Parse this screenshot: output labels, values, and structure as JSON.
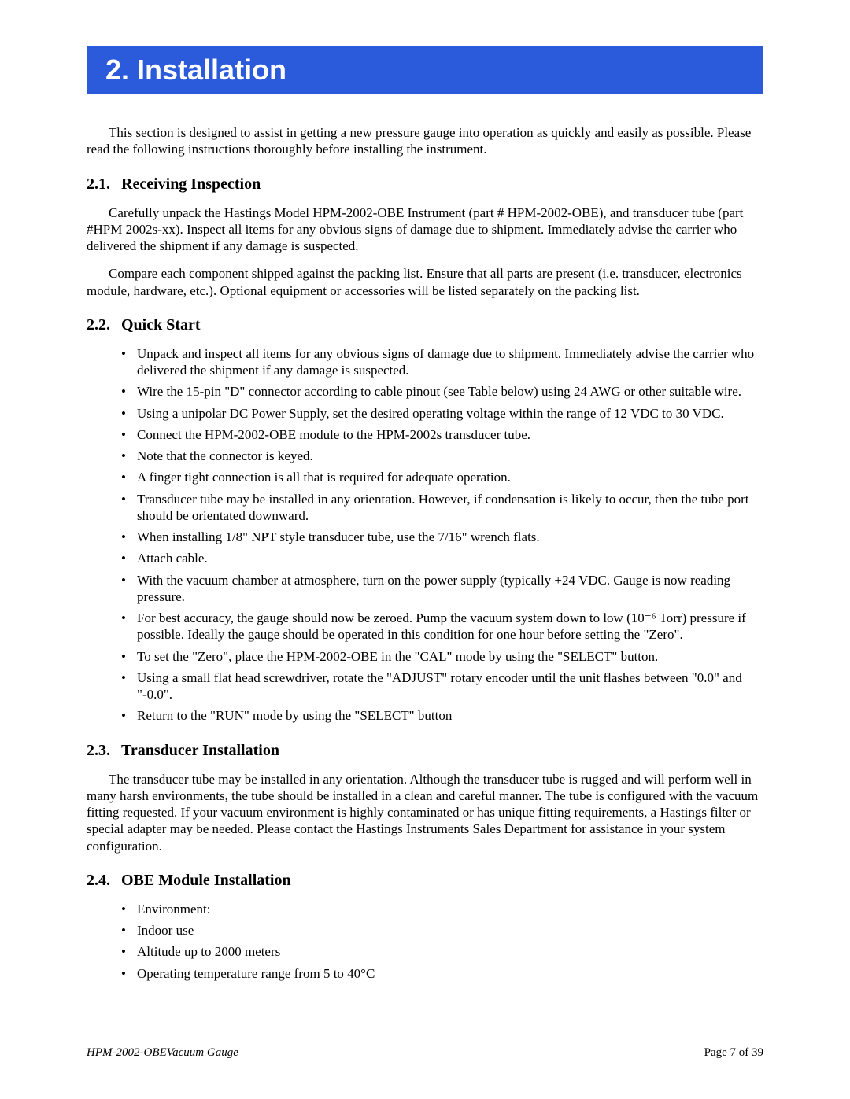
{
  "banner": {
    "title": "2.  Installation",
    "bg": "#2b5bdb",
    "fg": "#ffffff"
  },
  "intro": "This section is designed to assist in getting a new pressure gauge into operation as quickly and easily as possible. Please read the following instructions thoroughly before installing the instrument.",
  "s1": {
    "num": "2.1.",
    "title": "Receiving Inspection",
    "p1": "Carefully unpack the Hastings Model HPM-2002-OBE Instrument (part # HPM-2002-OBE), and transducer tube (part #HPM 2002s-xx). Inspect all items for any obvious signs of damage due to shipment. Immediately advise the carrier who delivered the shipment if any damage is suspected.",
    "p2": "Compare each component shipped against the packing list. Ensure that all parts are present (i.e. transducer, electronics module, hardware, etc.). Optional equipment or accessories will be listed separately on the packing list."
  },
  "s2": {
    "num": "2.2.",
    "title": "Quick Start",
    "items": [
      "Unpack and inspect all items for any obvious signs of damage due to shipment. Immediately advise the carrier who delivered the shipment if any damage is suspected.",
      "Wire the 15-pin \"D\" connector according to cable pinout (see Table below) using 24 AWG or other suitable wire.",
      "Using a unipolar DC Power Supply, set the desired operating voltage within the range of 12 VDC to 30 VDC.",
      "Connect the HPM-2002-OBE module to the HPM-2002s transducer tube.",
      "Note that the connector is keyed.",
      "A finger tight connection is all that is required for adequate operation.",
      "Transducer tube may be installed in any orientation. However, if condensation is likely to occur, then the tube port should be orientated downward.",
      "When installing 1/8\" NPT style transducer tube, use the 7/16\" wrench flats.",
      "Attach cable.",
      "With the vacuum chamber at atmosphere, turn on the power supply (typically +24 VDC. Gauge is now reading pressure.",
      "For best accuracy, the gauge should now be zeroed. Pump the vacuum system down to low (10⁻⁶ Torr) pressure if possible. Ideally the gauge should be operated in this condition for one hour before setting the \"Zero\".",
      "To set the \"Zero\", place the HPM-2002-OBE in the \"CAL\" mode by using the \"SELECT\" button.",
      "Using a small flat head screwdriver, rotate the \"ADJUST\" rotary encoder until the unit flashes between \"0.0\" and \"-0.0\".",
      "Return to the \"RUN\" mode by using the \"SELECT\" button"
    ]
  },
  "s3": {
    "num": "2.3.",
    "title": "Transducer Installation",
    "p1": "The transducer tube may be installed in any orientation. Although the transducer tube is rugged and will perform well in many harsh environments, the tube should be installed in a clean and careful manner. The tube is configured with the vacuum fitting requested. If your vacuum environment is highly contaminated or has unique fitting requirements, a Hastings filter or special adapter may be needed. Please contact the Hastings Instruments Sales Department for assistance in your system configuration."
  },
  "s4": {
    "num": "2.4.",
    "title": "OBE Module Installation",
    "items": [
      "Environment:",
      "Indoor use",
      "Altitude up to 2000 meters",
      "Operating temperature range from 5 to 40°C"
    ]
  },
  "footer": {
    "doc": "HPM-2002-OBEVacuum Gauge",
    "page": "Page 7 of 39"
  }
}
